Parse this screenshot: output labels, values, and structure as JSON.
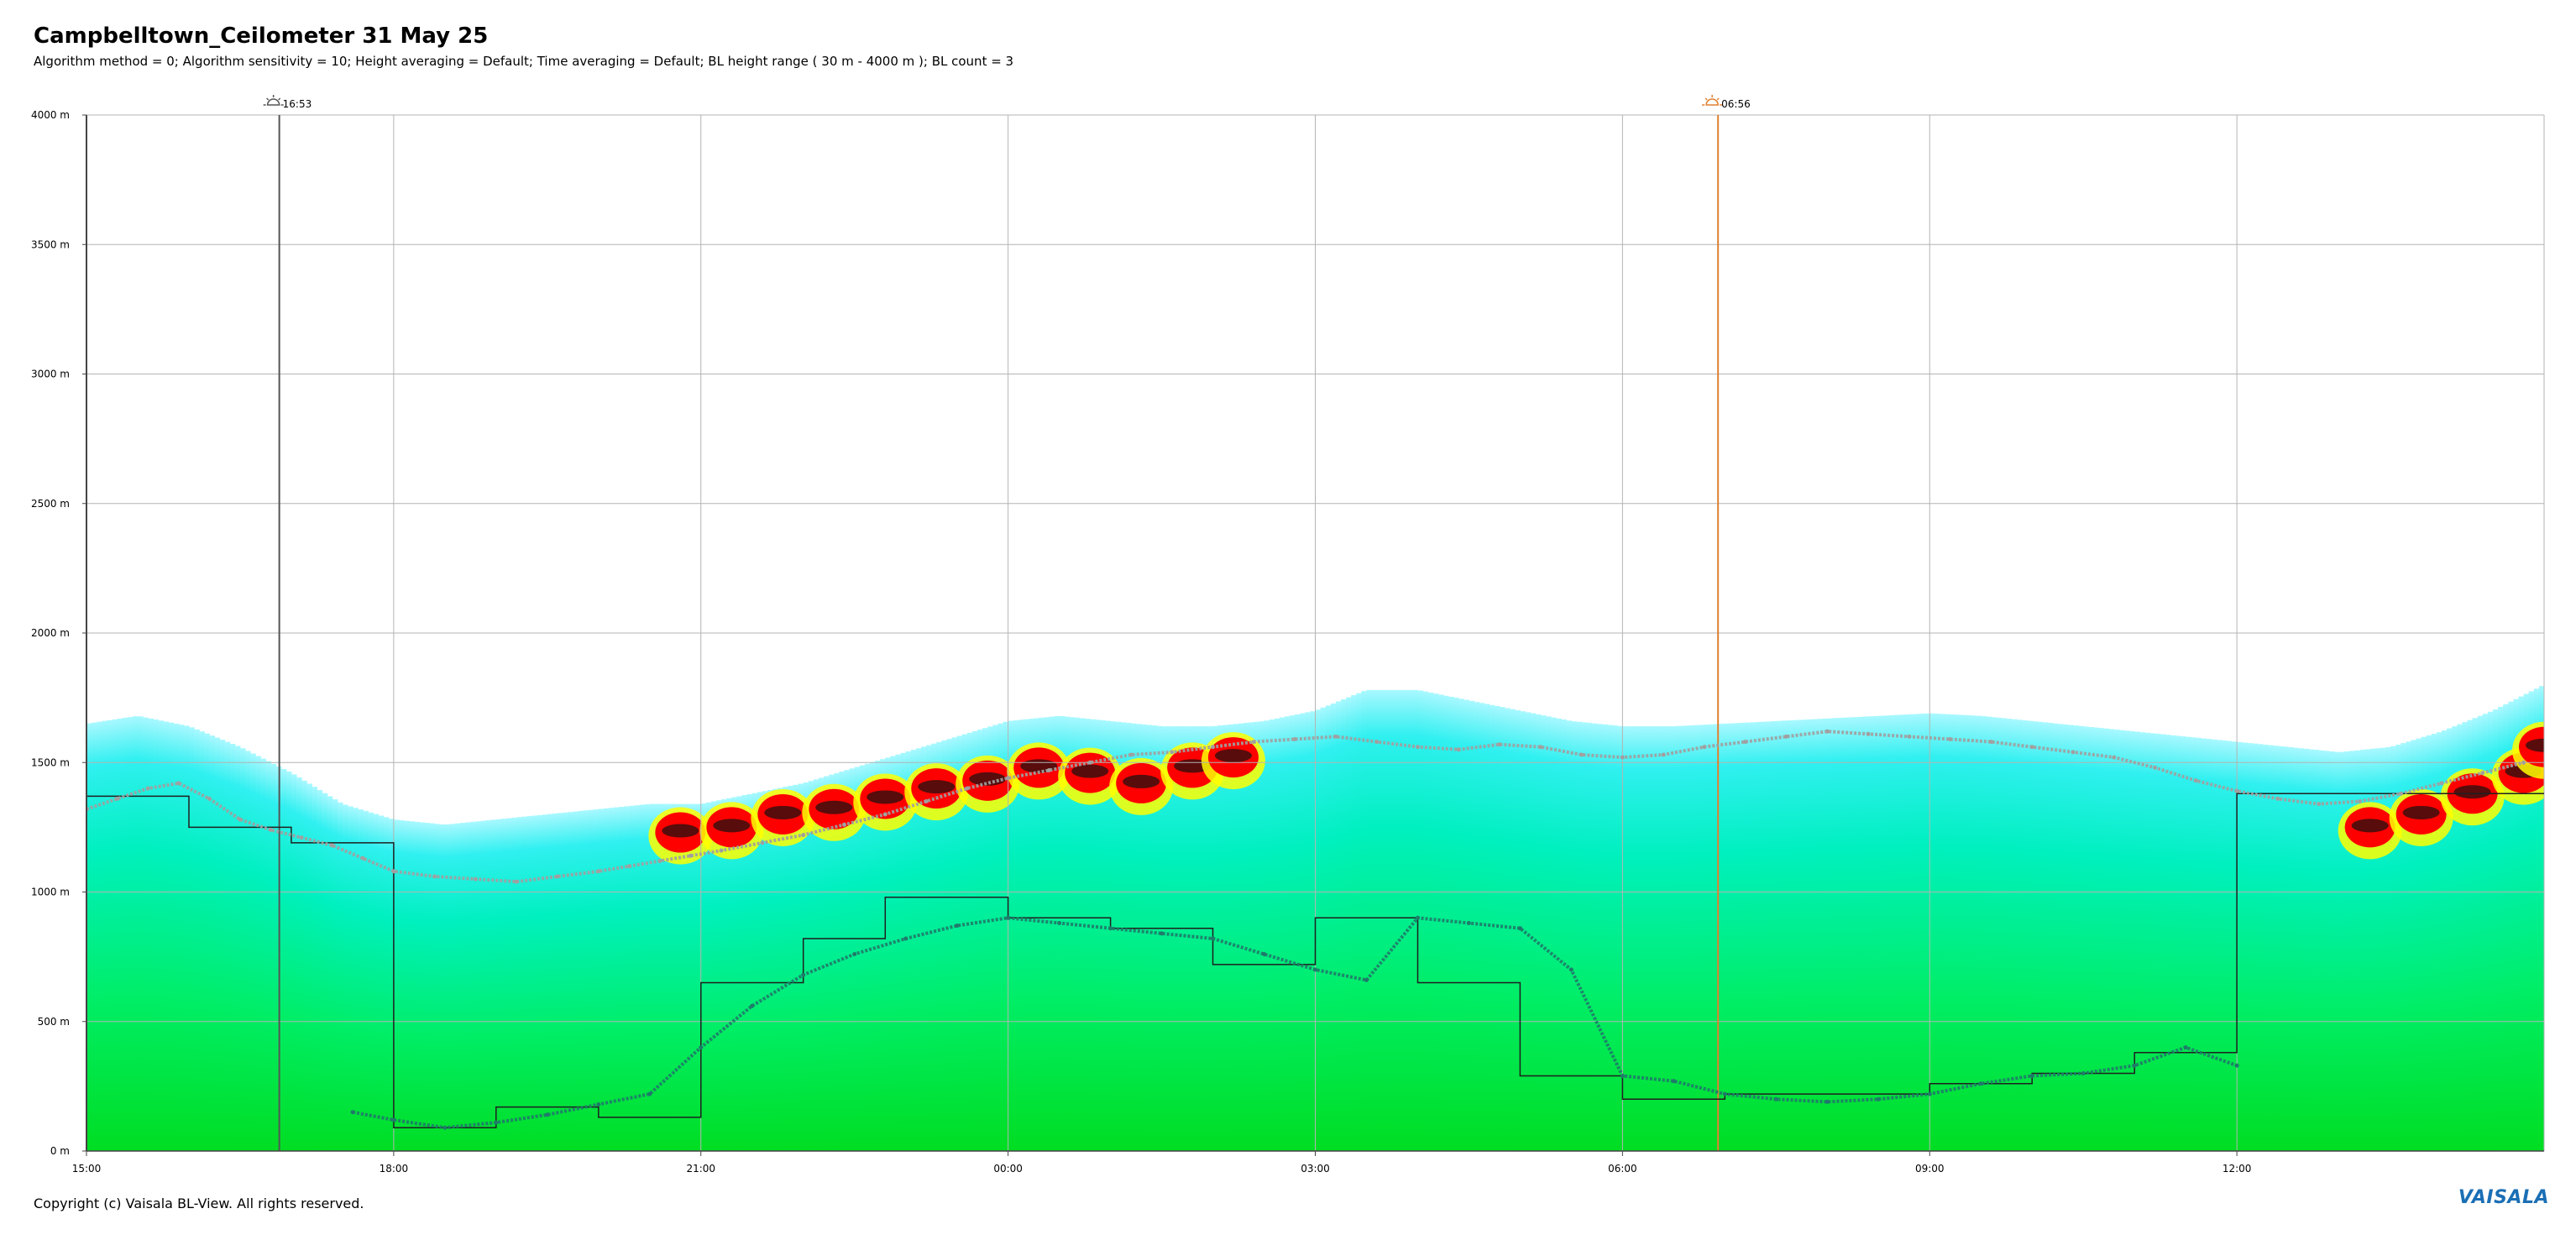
{
  "header": {
    "title": "Campbelltown_Ceilometer 31 May 25",
    "subtitle": "Algorithm method = 0; Algorithm sensitivity = 10; Height averaging = Default; Time averaging = Default; BL height range ( 30 m - 4000 m ); BL count = 3"
  },
  "footer": {
    "copyright": "Copyright (c) Vaisala BL-View. All rights reserved.",
    "logo_text": "VAISALA"
  },
  "colors": {
    "sunset_marker": "#555555",
    "sunrise_marker": "#e08030",
    "gridline": "#b4b4b4",
    "bl_line": "#1f1f1f",
    "bl_points_1": "#1f7a6a",
    "bl_points_2": "#a0a0a0",
    "backscatter_high": "#ff0000",
    "backscatter_mid": "#ffff00",
    "backscatter_low": "#00e000",
    "backscatter_faint": "#00ffff"
  },
  "chart_data": {
    "type": "heatmap",
    "title": "Campbelltown_Ceilometer 31 May 25",
    "x_unit": "hours since 15:00 on 31 May",
    "x_range": [
      0,
      24
    ],
    "y_range": [
      0,
      4000
    ],
    "y_ticks": [
      {
        "value": 0,
        "label": "0 m"
      },
      {
        "value": 500,
        "label": "500 m"
      },
      {
        "value": 1000,
        "label": "1000 m"
      },
      {
        "value": 1500,
        "label": "1500 m"
      },
      {
        "value": 2000,
        "label": "2000 m"
      },
      {
        "value": 2500,
        "label": "2500 m"
      },
      {
        "value": 3000,
        "label": "3000 m"
      },
      {
        "value": 3500,
        "label": "3500 m"
      },
      {
        "value": 4000,
        "label": "4000 m"
      }
    ],
    "x_ticks": [
      {
        "value": 0,
        "label": "15:00"
      },
      {
        "value": 3,
        "label": "18:00"
      },
      {
        "value": 6,
        "label": "21:00"
      },
      {
        "value": 9,
        "label": "00:00"
      },
      {
        "value": 12,
        "label": "03:00"
      },
      {
        "value": 15,
        "label": "06:00"
      },
      {
        "value": 18,
        "label": "09:00"
      },
      {
        "value": 21,
        "label": "12:00"
      }
    ],
    "grid": true,
    "sun_events": [
      {
        "type": "sunset",
        "x": 1.883,
        "label": "16:53"
      },
      {
        "type": "sunrise",
        "x": 15.933,
        "label": "06:56"
      }
    ],
    "aerosol_top": {
      "x": [
        0,
        0.5,
        1,
        1.5,
        2,
        2.5,
        3,
        3.5,
        4,
        4.5,
        5,
        5.5,
        6,
        6.5,
        7,
        7.5,
        8,
        8.5,
        9,
        9.5,
        10,
        10.5,
        11,
        11.5,
        12,
        12.5,
        13,
        13.5,
        14,
        14.5,
        15,
        15.5,
        16,
        16.5,
        17,
        17.5,
        18,
        18.5,
        19,
        19.5,
        20,
        20.5,
        21,
        21.5,
        22,
        22.5,
        23,
        23.5,
        24
      ],
      "y": [
        1650,
        1680,
        1640,
        1560,
        1460,
        1340,
        1280,
        1260,
        1280,
        1300,
        1320,
        1340,
        1340,
        1380,
        1420,
        1480,
        1540,
        1600,
        1660,
        1680,
        1660,
        1640,
        1640,
        1660,
        1700,
        1780,
        1780,
        1740,
        1700,
        1660,
        1640,
        1640,
        1650,
        1660,
        1670,
        1680,
        1690,
        1680,
        1660,
        1640,
        1620,
        1600,
        1580,
        1560,
        1540,
        1560,
        1620,
        1700,
        1800
      ]
    },
    "cloud_layers": [
      {
        "x": [
          5.8,
          6.3,
          6.8,
          7.3,
          7.8,
          8.3,
          8.8,
          9.3,
          9.8,
          10.3,
          10.8,
          11.2
        ],
        "y": [
          1230,
          1250,
          1300,
          1320,
          1360,
          1400,
          1430,
          1480,
          1460,
          1420,
          1480,
          1520
        ]
      },
      {
        "x": [
          22.3,
          22.8,
          23.3,
          23.8,
          24
        ],
        "y": [
          1250,
          1300,
          1380,
          1460,
          1560
        ]
      }
    ],
    "series": [
      {
        "name": "BL height 1",
        "x": [
          0,
          0.3,
          0.6,
          0.9,
          1.2,
          1.5,
          1.8,
          2.1,
          2.4,
          2.7,
          3.0,
          3.4,
          3.8,
          4.2,
          4.6,
          5.0,
          5.3,
          5.6,
          5.9,
          6.2,
          6.6,
          7.0,
          7.4,
          7.8,
          8.2,
          8.6,
          9.0,
          9.4,
          9.8,
          10.2,
          10.6,
          11.0,
          11.4,
          11.8,
          12.2,
          12.6,
          13.0,
          13.4,
          13.8,
          14.2,
          14.6,
          15.0,
          15.4,
          15.8,
          16.2,
          16.6,
          17.0,
          17.4,
          17.8,
          18.2,
          18.6,
          19.0,
          19.4,
          19.8,
          20.2,
          20.6,
          21.0,
          21.4,
          21.8,
          22.2,
          22.6,
          23.0,
          23.4,
          23.8
        ],
        "y": [
          1320,
          1360,
          1400,
          1420,
          1360,
          1280,
          1240,
          1210,
          1180,
          1130,
          1080,
          1060,
          1050,
          1040,
          1060,
          1080,
          1100,
          1120,
          1140,
          1160,
          1190,
          1220,
          1260,
          1300,
          1350,
          1400,
          1440,
          1470,
          1500,
          1530,
          1540,
          1560,
          1580,
          1590,
          1600,
          1580,
          1560,
          1550,
          1570,
          1560,
          1530,
          1520,
          1530,
          1560,
          1580,
          1600,
          1620,
          1610,
          1600,
          1590,
          1580,
          1560,
          1540,
          1520,
          1480,
          1430,
          1390,
          1360,
          1340,
          1350,
          1380,
          1420,
          1460,
          1500
        ]
      },
      {
        "name": "BL height 2",
        "x": [
          2.6,
          3.0,
          3.5,
          4.0,
          4.5,
          5.0,
          5.5,
          6.0,
          6.5,
          7.0,
          7.5,
          8.0,
          8.5,
          9.0,
          9.5,
          10.0,
          10.5,
          11.0,
          11.5,
          12.0,
          12.5,
          13.0,
          13.5,
          14.0,
          14.5,
          15.0,
          15.5,
          16.0,
          16.5,
          17.0,
          17.5,
          18.0,
          18.5,
          19.0,
          19.5,
          20.0,
          20.5,
          21.0
        ],
        "y": [
          150,
          120,
          90,
          110,
          140,
          180,
          220,
          400,
          560,
          680,
          760,
          820,
          870,
          900,
          880,
          860,
          840,
          820,
          760,
          700,
          660,
          900,
          880,
          860,
          700,
          290,
          270,
          220,
          200,
          190,
          200,
          220,
          260,
          290,
          300,
          330,
          400,
          330
        ]
      }
    ],
    "bl_step_line": {
      "x": [
        0,
        1.0,
        1.0,
        2.0,
        2.0,
        3.0,
        3.0,
        4.0,
        4.0,
        5.0,
        5.0,
        6.0,
        6.0,
        7.0,
        7.0,
        7.8,
        7.8,
        9.0,
        9.0,
        10.0,
        10.0,
        11.0,
        11.0,
        12.0,
        12.0,
        13.0,
        13.0,
        14.0,
        14.0,
        15.0,
        15.0,
        16.0,
        16.0,
        18.0,
        18.0,
        19.0,
        19.0,
        20.0,
        20.0,
        21.0,
        21.0,
        24.0
      ],
      "y": [
        1370,
        1370,
        1250,
        1250,
        1190,
        1190,
        90,
        90,
        170,
        170,
        130,
        130,
        650,
        650,
        820,
        820,
        980,
        980,
        900,
        900,
        860,
        860,
        720,
        720,
        900,
        900,
        650,
        650,
        290,
        290,
        200,
        200,
        220,
        220,
        260,
        260,
        300,
        300,
        380,
        380,
        1380,
        1380
      ]
    }
  }
}
